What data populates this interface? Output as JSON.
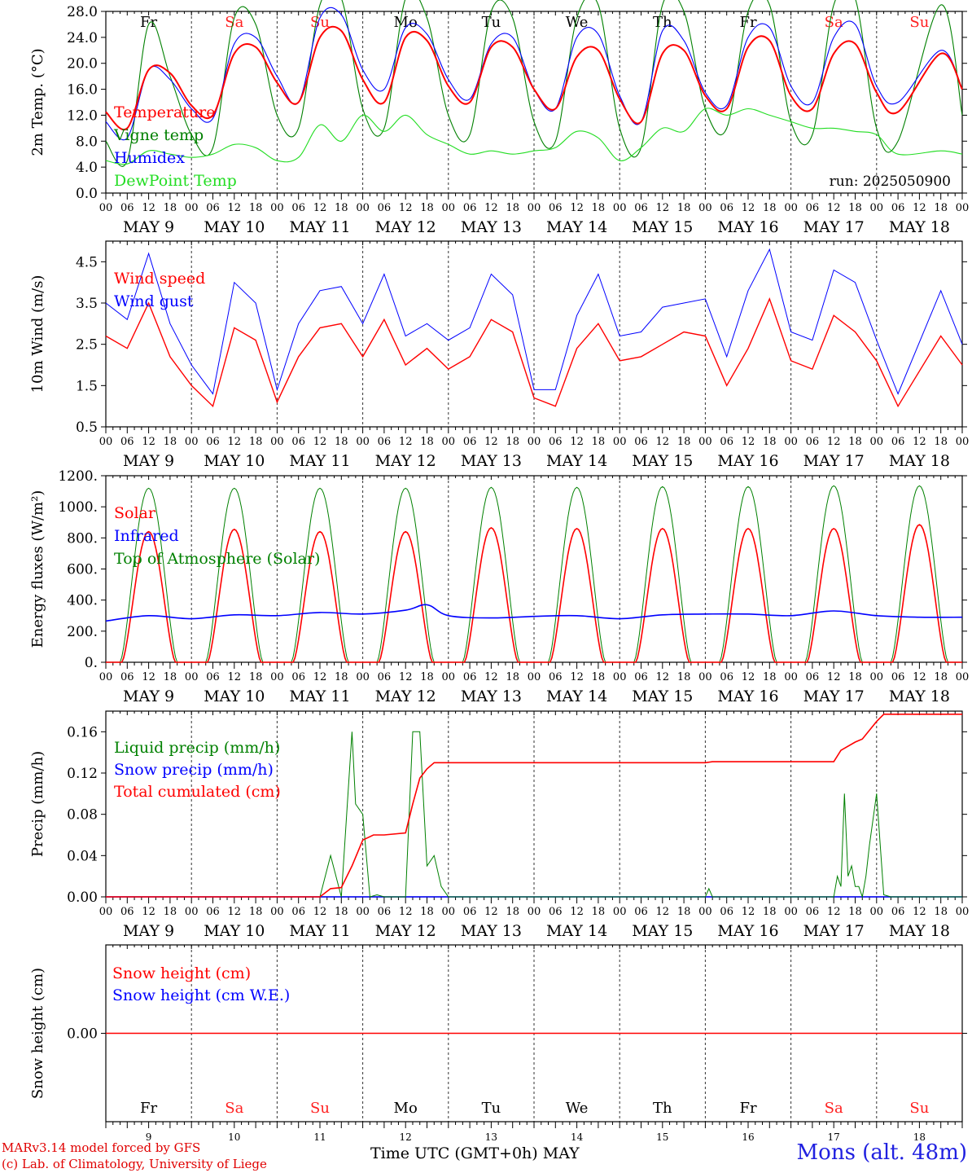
{
  "run_label": "run: 2025050900",
  "x_axis": {
    "hour_labels": [
      "00",
      "06",
      "12",
      "18",
      "00",
      "06",
      "12",
      "18",
      "00",
      "06",
      "12",
      "18",
      "00",
      "06",
      "12",
      "18",
      "00",
      "06",
      "12",
      "18",
      "00",
      "06",
      "12",
      "18",
      "00",
      "06",
      "12",
      "18",
      "00",
      "06",
      "12",
      "18",
      "00",
      "06",
      "12",
      "18",
      "00",
      "06",
      "12",
      "18",
      "00"
    ],
    "date_labels": [
      "MAY  9",
      "MAY 10",
      "MAY 11",
      "MAY 12",
      "MAY 13",
      "MAY 14",
      "MAY 15",
      "MAY 16",
      "MAY 17",
      "MAY 18"
    ],
    "weekdays": [
      "Fr",
      "Sa",
      "Su",
      "Mo",
      "Tu",
      "We",
      "Th",
      "Fr",
      "Sa",
      "Su"
    ],
    "weekday_colors": [
      "#000000",
      "#ff2020",
      "#ff2020",
      "#000000",
      "#000000",
      "#000000",
      "#000000",
      "#000000",
      "#ff2020",
      "#ff2020"
    ],
    "day_numbers": [
      "9",
      "10",
      "11",
      "12",
      "13",
      "14",
      "15",
      "16",
      "17",
      "18"
    ],
    "title": "Time UTC (GMT+0h)",
    "month": "MAY"
  },
  "footer": {
    "credit_line1": "MARv3.14 model forced by GFS",
    "credit_line2": "(c) Lab. of Climatology, University of Liege",
    "station": "Mons (alt. 48m)"
  },
  "chart_data": [
    {
      "type": "line",
      "panel": "temperature",
      "ylabel": "2m Temp. (°C)",
      "ylim": [
        0,
        28
      ],
      "yticks": [
        0.0,
        4.0,
        8.0,
        12.0,
        16.0,
        20.0,
        24.0,
        28.0
      ],
      "ytick_labels": [
        "0.0",
        "4.0",
        "8.0",
        "12.0",
        "16.0",
        "20.0",
        "24.0",
        "28.0"
      ],
      "x_hours": [
        0,
        6,
        12,
        18,
        24,
        30,
        36,
        42,
        48,
        54,
        60,
        66,
        72,
        78,
        84,
        90,
        96,
        102,
        108,
        114,
        120,
        126,
        132,
        138,
        144,
        150,
        156,
        162,
        168,
        174,
        180,
        186,
        192,
        198,
        204,
        210,
        216,
        222,
        234,
        240
      ],
      "series": [
        {
          "name": "Temperature",
          "color": "#ff0000",
          "values": [
            12.5,
            10.0,
            19.0,
            18.5,
            13.5,
            12.0,
            21.5,
            22.5,
            17.0,
            14.0,
            24.0,
            25.0,
            17.5,
            14.0,
            24.0,
            23.5,
            16.5,
            14.0,
            22.5,
            22.5,
            16.0,
            13.0,
            21.0,
            22.0,
            14.5,
            11.0,
            21.5,
            22.0,
            15.0,
            13.0,
            22.5,
            23.5,
            15.0,
            13.0,
            21.5,
            23.0,
            15.5,
            12.5,
            21.5,
            16.0
          ]
        },
        {
          "name": "Vigne temp",
          "color": "#008000",
          "values": [
            8.0,
            5.0,
            26.0,
            18.0,
            9.0,
            7.0,
            27.0,
            26.0,
            12.0,
            10.0,
            29.0,
            30.0,
            13.0,
            10.0,
            30.0,
            27.0,
            12.0,
            9.0,
            28.0,
            27.0,
            11.0,
            8.0,
            27.0,
            29.0,
            10.0,
            7.0,
            29.0,
            28.0,
            13.0,
            10.0,
            28.0,
            29.0,
            11.0,
            9.0,
            29.0,
            30.0,
            10.0,
            8.0,
            29.0,
            12.0
          ]
        },
        {
          "name": "Humidex",
          "color": "#0000ff",
          "values": [
            11.0,
            8.5,
            19.0,
            17.5,
            13.0,
            11.5,
            23.0,
            24.0,
            18.0,
            14.0,
            27.0,
            27.5,
            19.0,
            16.0,
            25.5,
            24.5,
            17.5,
            14.5,
            23.0,
            24.0,
            16.0,
            13.0,
            24.0,
            24.5,
            15.0,
            11.0,
            25.0,
            23.5,
            15.5,
            13.5,
            24.0,
            25.5,
            16.5,
            14.0,
            24.0,
            26.0,
            16.5,
            14.0,
            22.0,
            16.0
          ]
        },
        {
          "name": "DewPoint Temp",
          "color": "#22dd22",
          "values": [
            5.0,
            4.5,
            6.5,
            6.0,
            5.5,
            6.0,
            7.5,
            7.0,
            5.0,
            5.5,
            10.5,
            8.0,
            12.0,
            9.5,
            12.0,
            9.0,
            7.5,
            6.0,
            6.5,
            6.0,
            6.5,
            7.0,
            9.5,
            8.5,
            5.0,
            7.0,
            10.0,
            9.5,
            13.0,
            12.0,
            13.0,
            12.0,
            11.0,
            10.0,
            10.0,
            9.5,
            9.0,
            6.0,
            6.5,
            6.0
          ]
        }
      ]
    },
    {
      "type": "line",
      "panel": "wind",
      "ylabel": "10m Wind (m/s)",
      "ylim": [
        0.5,
        5.0
      ],
      "yticks": [
        0.5,
        1.5,
        2.5,
        3.5,
        4.5
      ],
      "ytick_labels": [
        "0.5",
        "1.5",
        "2.5",
        "3.5",
        "4.5"
      ],
      "x_hours": [
        0,
        6,
        12,
        18,
        24,
        30,
        36,
        42,
        48,
        54,
        60,
        66,
        72,
        78,
        84,
        90,
        96,
        102,
        108,
        114,
        120,
        126,
        132,
        138,
        144,
        150,
        156,
        162,
        168,
        174,
        180,
        186,
        192,
        198,
        204,
        210,
        216,
        222,
        234,
        240
      ],
      "series": [
        {
          "name": "Wind speed",
          "color": "#ff0000",
          "values": [
            2.7,
            2.4,
            3.5,
            2.2,
            1.5,
            1.0,
            2.9,
            2.6,
            1.1,
            2.2,
            2.9,
            3.0,
            2.2,
            3.1,
            2.0,
            2.4,
            1.9,
            2.2,
            3.1,
            2.8,
            1.2,
            1.0,
            2.4,
            3.0,
            2.1,
            2.2,
            2.5,
            2.8,
            2.7,
            1.5,
            2.4,
            3.6,
            2.1,
            1.9,
            3.2,
            2.8,
            2.1,
            1.0,
            2.7,
            2.0
          ]
        },
        {
          "name": "Wind gust",
          "color": "#0000ff",
          "values": [
            3.5,
            3.1,
            4.7,
            3.0,
            2.0,
            1.3,
            4.0,
            3.5,
            1.4,
            3.0,
            3.8,
            3.9,
            3.0,
            4.2,
            2.7,
            3.0,
            2.6,
            2.9,
            4.2,
            3.7,
            1.4,
            1.4,
            3.2,
            4.2,
            2.7,
            2.8,
            3.4,
            3.5,
            3.6,
            2.2,
            3.8,
            4.8,
            2.8,
            2.6,
            4.3,
            4.0,
            2.6,
            1.3,
            3.8,
            2.5
          ]
        }
      ]
    },
    {
      "type": "line",
      "panel": "energy",
      "ylabel": "Energy fluxes (W/m²)",
      "ylim": [
        0,
        1200
      ],
      "yticks": [
        0,
        200,
        400,
        600,
        800,
        1000,
        1200
      ],
      "ytick_labels": [
        "0.",
        "200.",
        "400.",
        "600.",
        "800.",
        "1000.",
        "1200."
      ],
      "daily_peaks": {
        "solar": [
          840,
          855,
          840,
          840,
          865,
          860,
          860,
          860,
          860,
          885
        ],
        "top_of_atmosphere": [
          1120,
          1120,
          1120,
          1120,
          1125,
          1125,
          1130,
          1130,
          1135,
          1135
        ],
        "infrared_x_hours": [
          0,
          12,
          24,
          36,
          48,
          60,
          72,
          84,
          90,
          96,
          108,
          120,
          132,
          144,
          156,
          168,
          180,
          192,
          204,
          216,
          228,
          240
        ],
        "infrared": [
          265,
          300,
          280,
          305,
          300,
          320,
          310,
          335,
          370,
          300,
          285,
          295,
          300,
          280,
          305,
          310,
          310,
          300,
          330,
          300,
          290,
          290
        ]
      },
      "series": [
        {
          "name": "Solar",
          "color": "#ff0000"
        },
        {
          "name": "Infrared",
          "color": "#0000ff"
        },
        {
          "name": "Top of Atmosphere (Solar)",
          "color": "#008000"
        }
      ]
    },
    {
      "type": "line",
      "panel": "precip",
      "ylabel": "Precip (mm/h)",
      "ylim": [
        0,
        0.18
      ],
      "yticks": [
        0,
        0.04,
        0.08,
        0.12,
        0.16
      ],
      "ytick_labels": [
        "0.00",
        "0.04",
        "0.08",
        "0.12",
        "0.16"
      ],
      "series": [
        {
          "name": "Liquid precip (mm/h)",
          "color": "#008000",
          "x": [
            0,
            60,
            63,
            66,
            69,
            70,
            72,
            74,
            76,
            78,
            80,
            82,
            84,
            86,
            88,
            90,
            92,
            94,
            96,
            98,
            102,
            168,
            169,
            170,
            204,
            205,
            206,
            207,
            208,
            209,
            210,
            211,
            212,
            213,
            214,
            216,
            218,
            220,
            240
          ],
          "y": [
            0,
            0,
            0.04,
            0,
            0.16,
            0.09,
            0.08,
            0,
            0.002,
            0,
            0,
            0,
            0,
            0.16,
            0.16,
            0.03,
            0.04,
            0.01,
            0,
            0,
            0,
            0,
            0.008,
            0,
            0,
            0.02,
            0.01,
            0.1,
            0.02,
            0.03,
            0.01,
            0.01,
            0.0,
            0.02,
            0.05,
            0.1,
            0.002,
            0,
            0
          ]
        },
        {
          "name": "Snow precip (mm/h)",
          "color": "#0000ff",
          "x": [
            0,
            240
          ],
          "y": [
            0,
            0
          ]
        },
        {
          "name": "Total cumulated (cm)",
          "color": "#ff0000",
          "x": [
            0,
            60,
            63,
            66,
            69,
            72,
            75,
            78,
            84,
            86,
            88,
            90,
            92,
            96,
            168,
            170,
            204,
            206,
            210,
            212,
            216,
            218,
            240
          ],
          "y": [
            0,
            0,
            0.008,
            0.009,
            0.03,
            0.055,
            0.06,
            0.06,
            0.062,
            0.09,
            0.115,
            0.124,
            0.13,
            0.13,
            0.13,
            0.131,
            0.131,
            0.142,
            0.15,
            0.153,
            0.17,
            0.177,
            0.177
          ]
        }
      ]
    },
    {
      "type": "line",
      "panel": "snow",
      "ylabel": "Snow height (cm)",
      "ylim": [
        -1,
        1
      ],
      "yticks": [
        0
      ],
      "ytick_labels": [
        "0.00"
      ],
      "series": [
        {
          "name": "Snow height (cm)",
          "color": "#ff0000",
          "x": [
            0,
            240
          ],
          "y": [
            0,
            0
          ]
        },
        {
          "name": "Snow height (cm W.E.)",
          "color": "#0000ff",
          "x": [
            0,
            240
          ],
          "y": [
            0,
            0
          ]
        }
      ]
    }
  ]
}
